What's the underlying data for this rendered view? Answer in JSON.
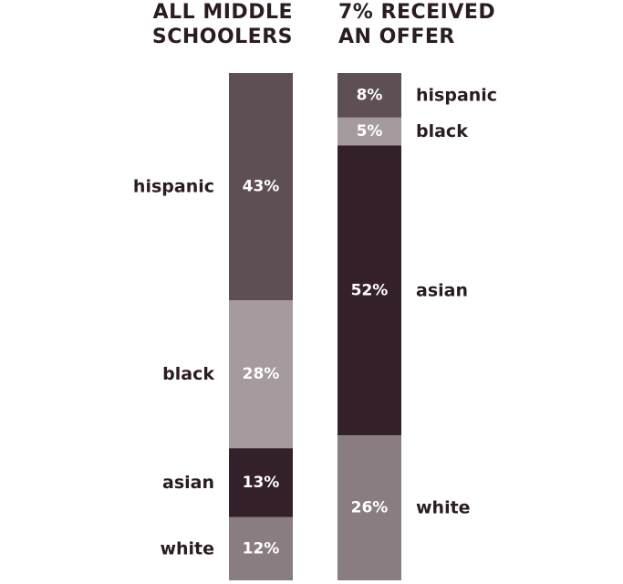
{
  "chart_data": {
    "type": "bar",
    "stacked": true,
    "orientation": "vertical",
    "categories": [
      "hispanic",
      "black",
      "asian",
      "white"
    ],
    "colors": {
      "hispanic": "#5e4f55",
      "black": "#a59a9d",
      "asian": "#33202a",
      "white": "#8a7d82",
      "text": "#2a1c22",
      "bar_label": "#ffffff"
    },
    "bars": [
      {
        "title_lines": [
          "ALL MIDDLE",
          "SCHOOLERS"
        ],
        "label_side": "left",
        "segments": [
          {
            "category": "hispanic",
            "value": 43,
            "label": "43%"
          },
          {
            "category": "black",
            "value": 28,
            "label": "28%"
          },
          {
            "category": "asian",
            "value": 13,
            "label": "13%"
          },
          {
            "category": "white",
            "value": 12,
            "label": "12%"
          }
        ]
      },
      {
        "title_lines": [
          "7% RECEIVED",
          "AN OFFER"
        ],
        "label_side": "right",
        "segments": [
          {
            "category": "hispanic",
            "value": 8,
            "label": "8%"
          },
          {
            "category": "black",
            "value": 5,
            "label": "5%"
          },
          {
            "category": "asian",
            "value": 52,
            "label": "52%"
          },
          {
            "category": "white",
            "value": 26,
            "label": "26%"
          }
        ]
      }
    ]
  }
}
